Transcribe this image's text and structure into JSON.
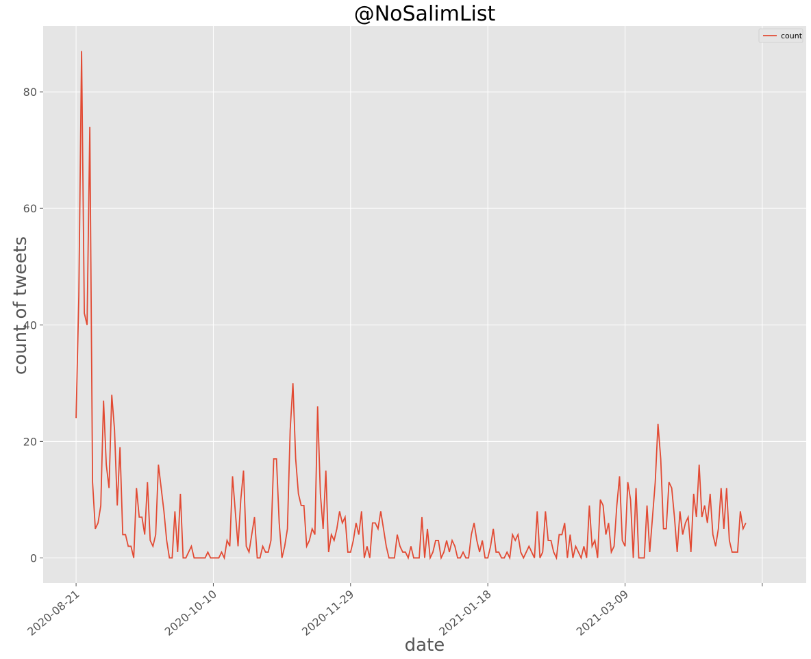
{
  "chart_data": {
    "type": "line",
    "title": "@NoSalimList",
    "xlabel": "date",
    "ylabel": "count of tweets",
    "x_start": "2020-08-21",
    "x_ticks": [
      "2020-08-21",
      "2020-10-10",
      "2020-11-29",
      "2021-01-18",
      "2021-03-09",
      ""
    ],
    "xlim": [
      "2020-08-09",
      "2021-05-14"
    ],
    "y_ticks": [
      0,
      20,
      40,
      60,
      80
    ],
    "ylim": [
      -4.3,
      91.3
    ],
    "grid": true,
    "legend": "top-right",
    "colors": {
      "line": "#e24a33",
      "plot_bg": "#e5e5e5",
      "grid": "#ffffff"
    },
    "series": [
      {
        "name": "count",
        "values": [
          24,
          45,
          87,
          42,
          40,
          74,
          13,
          5,
          6,
          9,
          27,
          16,
          12,
          28,
          22,
          9,
          19,
          4,
          4,
          2,
          2,
          0,
          12,
          7,
          7,
          4,
          13,
          3,
          2,
          4,
          16,
          12,
          8,
          3,
          0,
          0,
          8,
          1,
          11,
          0,
          0,
          1,
          2,
          0,
          0,
          0,
          0,
          0,
          1,
          0,
          0,
          0,
          0,
          1,
          0,
          3,
          2,
          14,
          8,
          2,
          10,
          15,
          2,
          1,
          4,
          7,
          0,
          0,
          2,
          1,
          1,
          3,
          17,
          17,
          6,
          0,
          2,
          5,
          22,
          30,
          17,
          11,
          9,
          9,
          2,
          3,
          5,
          4,
          26,
          11,
          5,
          15,
          1,
          4,
          3,
          5,
          8,
          6,
          7,
          1,
          1,
          3,
          6,
          4,
          8,
          0,
          2,
          0,
          6,
          6,
          5,
          8,
          5,
          2,
          0,
          0,
          0,
          4,
          2,
          1,
          1,
          0,
          2,
          0,
          0,
          0,
          7,
          0,
          5,
          0,
          1,
          3,
          3,
          0,
          1,
          3,
          1,
          3,
          2,
          0,
          0,
          1,
          0,
          0,
          4,
          6,
          3,
          1,
          3,
          0,
          0,
          2,
          5,
          1,
          1,
          0,
          0,
          1,
          0,
          4,
          3,
          4,
          1,
          0,
          1,
          2,
          1,
          0,
          8,
          0,
          1,
          8,
          3,
          3,
          1,
          0,
          4,
          4,
          6,
          0,
          4,
          0,
          2,
          1,
          0,
          2,
          0,
          9,
          2,
          3,
          0,
          10,
          9,
          4,
          6,
          1,
          2,
          9,
          14,
          3,
          2,
          13,
          10,
          0,
          12,
          0,
          0,
          0,
          9,
          1,
          7,
          13,
          23,
          17,
          5,
          5,
          13,
          12,
          7,
          1,
          8,
          4,
          6,
          7,
          1,
          11,
          7,
          16,
          7,
          9,
          6,
          11,
          4,
          2,
          5,
          12,
          5,
          12,
          3,
          1,
          1,
          1,
          8,
          5,
          6
        ]
      }
    ]
  }
}
